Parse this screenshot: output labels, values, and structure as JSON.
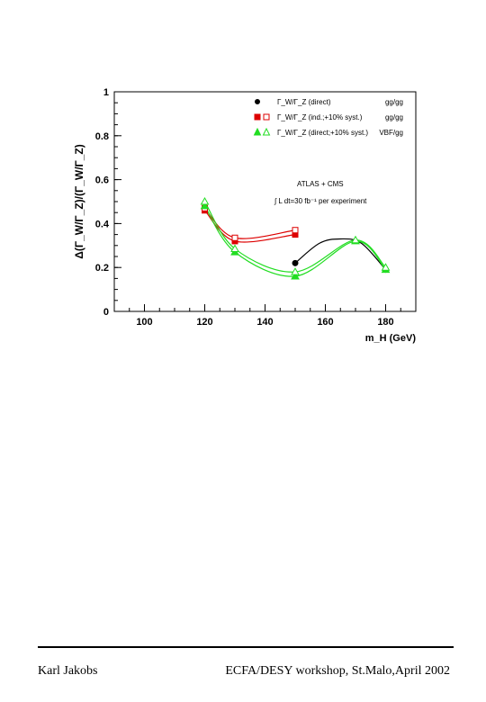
{
  "chart_data": {
    "type": "line",
    "xlabel": "m_H (GeV)",
    "ylabel": "Δ(Γ_W/Γ_Z)/(Γ_W/Γ_Z)",
    "xlim": [
      90,
      190
    ],
    "ylim": [
      0,
      1
    ],
    "x_ticks": [
      100,
      120,
      140,
      160,
      180
    ],
    "y_ticks": [
      0,
      0.2,
      0.4,
      0.6,
      0.8,
      1
    ],
    "grid": false,
    "legend_position": "top-right",
    "annotation": {
      "line1": "ATLAS + CMS",
      "line2": "∫ L dt=30 fb⁻¹ per experiment"
    },
    "series": [
      {
        "name": "Γ_W/Γ_Z (direct)",
        "channel": "gg/gg",
        "color": "#000000",
        "marker": "circle",
        "filled": true,
        "x": [
          150,
          180
        ],
        "y": [
          0.22,
          0.19
        ]
      },
      {
        "name": "Γ_W/Γ_Z (ind.;+10% syst.)",
        "channel": "gg/gg",
        "color": "#dd0000",
        "marker": "square",
        "filled": true,
        "x": [
          120,
          130,
          150
        ],
        "y": [
          0.46,
          0.32,
          0.35
        ]
      },
      {
        "name": "",
        "color": "#dd0000",
        "marker": "square",
        "filled": false,
        "x": [
          120,
          130,
          150
        ],
        "y": [
          0.47,
          0.335,
          0.37
        ]
      },
      {
        "name": "Γ_W/Γ_Z (direct;+10% syst.)",
        "channel": "VBF/gg",
        "color": "#22dd22",
        "marker": "triangle",
        "filled": true,
        "x": [
          120,
          130,
          150,
          170,
          180
        ],
        "y": [
          0.48,
          0.27,
          0.16,
          0.32,
          0.19
        ]
      },
      {
        "name": "",
        "color": "#22dd22",
        "marker": "triangle",
        "filled": false,
        "x": [
          120,
          130,
          150,
          170,
          180
        ],
        "y": [
          0.5,
          0.285,
          0.18,
          0.325,
          0.2
        ]
      }
    ]
  },
  "footer": {
    "left": "Karl Jakobs",
    "right": "ECFA/DESY workshop, St.Malo,April 2002"
  }
}
